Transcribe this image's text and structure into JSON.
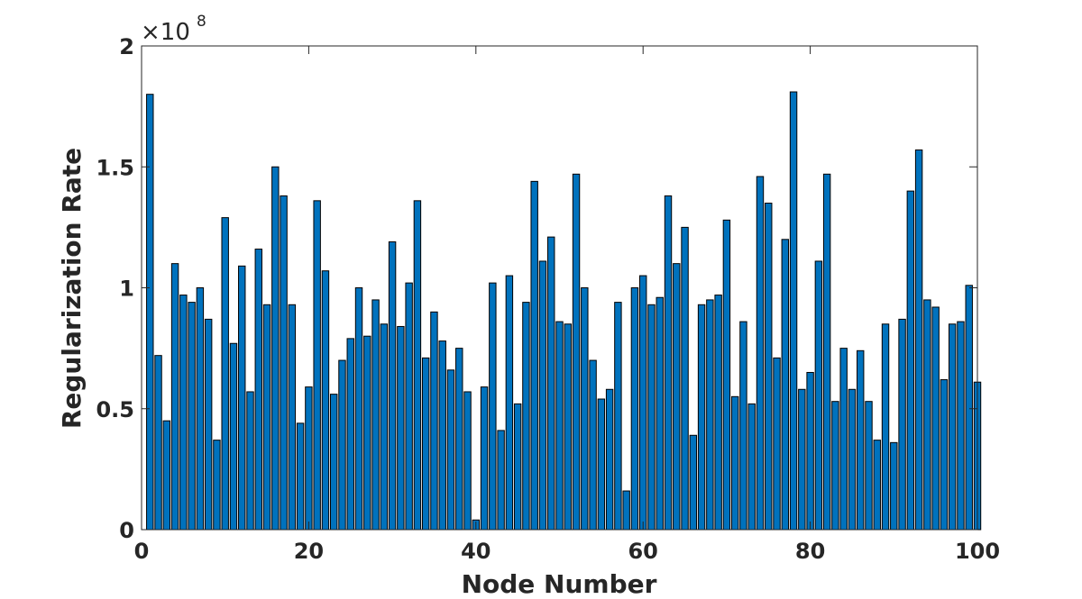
{
  "chart_data": {
    "type": "bar",
    "xlabel": "Node Number",
    "ylabel": "Regularization Rate",
    "y_exponent_base": "×10",
    "y_exponent_power": "8",
    "xlim": [
      0,
      100
    ],
    "ylim": [
      0,
      2
    ],
    "xticks": [
      0,
      20,
      40,
      60,
      80,
      100
    ],
    "yticks": [
      0,
      0.5,
      1,
      1.5,
      2
    ],
    "ytick_labels": [
      "0",
      "0.5",
      "1",
      "1.5",
      "2"
    ],
    "grid": false,
    "bar_color": "#0072BD",
    "edge_color": "#000000",
    "x": [
      1,
      2,
      3,
      4,
      5,
      6,
      7,
      8,
      9,
      10,
      11,
      12,
      13,
      14,
      15,
      16,
      17,
      18,
      19,
      20,
      21,
      22,
      23,
      24,
      25,
      26,
      27,
      28,
      29,
      30,
      31,
      32,
      33,
      34,
      35,
      36,
      37,
      38,
      39,
      40,
      41,
      42,
      43,
      44,
      45,
      46,
      47,
      48,
      49,
      50,
      51,
      52,
      53,
      54,
      55,
      56,
      57,
      58,
      59,
      60,
      61,
      62,
      63,
      64,
      65,
      66,
      67,
      68,
      69,
      70,
      71,
      72,
      73,
      74,
      75,
      76,
      77,
      78,
      79,
      80,
      81,
      82,
      83,
      84,
      85,
      86,
      87,
      88,
      89,
      90,
      91,
      92,
      93,
      94,
      95,
      96,
      97,
      98,
      99,
      100
    ],
    "values": [
      1.8,
      0.72,
      0.45,
      1.1,
      0.97,
      0.94,
      1.0,
      0.87,
      0.37,
      1.29,
      0.77,
      1.09,
      0.57,
      1.16,
      0.93,
      1.5,
      1.38,
      0.93,
      0.44,
      0.59,
      1.36,
      1.07,
      0.56,
      0.7,
      0.79,
      1.0,
      0.8,
      0.95,
      0.85,
      1.19,
      0.84,
      1.02,
      1.36,
      0.71,
      0.9,
      0.78,
      0.66,
      0.75,
      0.57,
      0.04,
      0.59,
      1.02,
      0.41,
      1.05,
      0.52,
      0.94,
      1.44,
      1.11,
      1.21,
      0.86,
      0.85,
      1.47,
      1.0,
      0.7,
      0.54,
      0.58,
      0.94,
      0.16,
      1.0,
      1.05,
      0.93,
      0.96,
      1.38,
      1.1,
      1.25,
      0.39,
      0.93,
      0.95,
      0.97,
      1.28,
      0.55,
      0.86,
      0.52,
      1.46,
      1.35,
      0.71,
      1.2,
      1.81,
      0.58,
      0.65,
      1.11,
      1.47,
      0.53,
      0.75,
      0.58,
      0.74,
      0.53,
      0.37,
      0.85,
      0.36,
      0.87,
      1.4,
      1.57,
      0.95,
      0.92,
      0.62,
      0.85,
      0.86,
      1.01,
      0.61
    ]
  }
}
